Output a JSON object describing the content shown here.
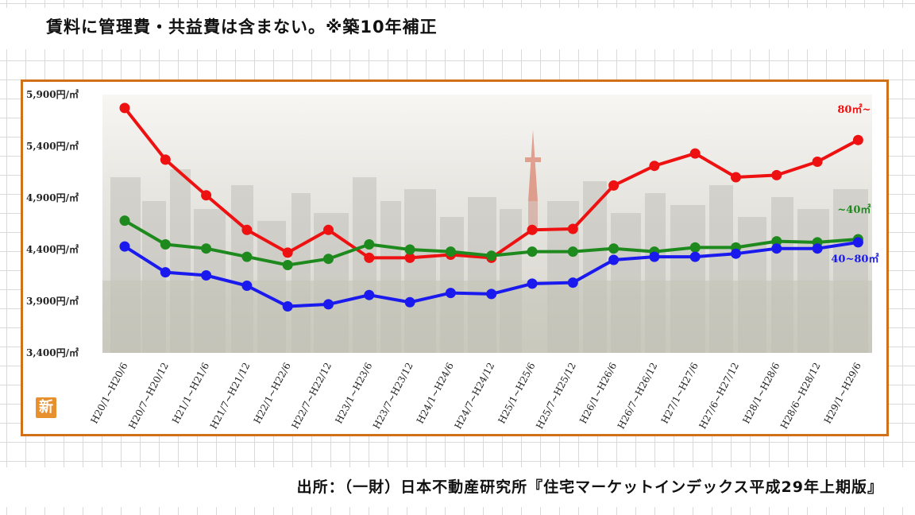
{
  "header": {
    "note": "賃料に管理費・共益費は含まない。※築10年補正"
  },
  "footer": {
    "source": "出所：（一財）日本不動産研究所『住宅マーケットインデックス平成29年上期版』"
  },
  "badge": {
    "label": "新"
  },
  "colors": {
    "frame": "#d07119",
    "red": "#ee1111",
    "green": "#1e8a1e",
    "blue": "#1a1aee"
  },
  "chart_data": {
    "type": "line",
    "title": "",
    "xlabel": "",
    "ylabel": "",
    "ylim": [
      3400,
      5900
    ],
    "ytick_values": [
      3400,
      3900,
      4400,
      4900,
      5400,
      5900
    ],
    "ytick_labels": [
      "3,400円/㎡",
      "3,900円/㎡",
      "4,400円/㎡",
      "4,900円/㎡",
      "5,400円/㎡",
      "5,900円/㎡"
    ],
    "categories": [
      "H20/1~H20/6",
      "H20/7~H20/12",
      "H21/1~H21/6",
      "H21/7~H21/12",
      "H22/1~H22/6",
      "H22/7~H22/12",
      "H23/1~H23/6",
      "H23/7~H23/12",
      "H24/1~H24/6",
      "H24/7~H24/12",
      "H25/1~H25/6",
      "H25/7~H25/12",
      "H26/1~H26/6",
      "H26/7~H26/12",
      "H27/1~H27/6",
      "H27/6~H27/12",
      "H28/1~H28/6",
      "H28/6~H28/12",
      "H29/1~H29/6"
    ],
    "series": [
      {
        "name": "80㎡~",
        "color": "#ee1111",
        "values": [
          5770,
          5270,
          4925,
          4590,
          4370,
          4590,
          4320,
          4320,
          4350,
          4320,
          4590,
          4600,
          5020,
          5210,
          5330,
          5100,
          5120,
          5250,
          5460
        ]
      },
      {
        "name": "~40㎡",
        "color": "#1e8a1e",
        "values": [
          4680,
          4450,
          4410,
          4330,
          4250,
          4310,
          4450,
          4400,
          4380,
          4340,
          4380,
          4380,
          4410,
          4380,
          4420,
          4420,
          4480,
          4470,
          4500
        ]
      },
      {
        "name": "40~80㎡",
        "color": "#1a1aee",
        "values": [
          4430,
          4180,
          4150,
          4050,
          3850,
          3870,
          3960,
          3890,
          3980,
          3970,
          4070,
          4080,
          4300,
          4330,
          4330,
          4360,
          4410,
          4410,
          4470
        ]
      }
    ],
    "grid": false,
    "legend": "inline labels at right end of each line"
  }
}
